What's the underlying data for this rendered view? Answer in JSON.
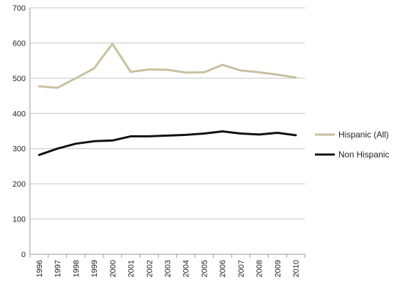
{
  "chart_data": {
    "type": "line",
    "x": [
      "1996",
      "1997",
      "1998",
      "1999",
      "2000",
      "2001",
      "2002",
      "2003",
      "2004",
      "2005",
      "2006",
      "2007",
      "2008",
      "2009",
      "2010"
    ],
    "series": [
      {
        "name": "Hispanic (All)",
        "color": "#c8c0a0",
        "values": [
          477,
          473,
          500,
          528,
          598,
          518,
          525,
          524,
          516,
          517,
          538,
          522,
          517,
          510,
          502
        ]
      },
      {
        "name": "Non Hispanic",
        "color": "#111111",
        "values": [
          282,
          300,
          314,
          321,
          323,
          335,
          335,
          337,
          339,
          343,
          349,
          343,
          340,
          345,
          338
        ]
      }
    ],
    "yticks": [
      "0",
      "100",
      "200",
      "300",
      "400",
      "500",
      "600",
      "700"
    ],
    "ylim": [
      0,
      700
    ],
    "grid": "horizontal",
    "legend": "right"
  }
}
